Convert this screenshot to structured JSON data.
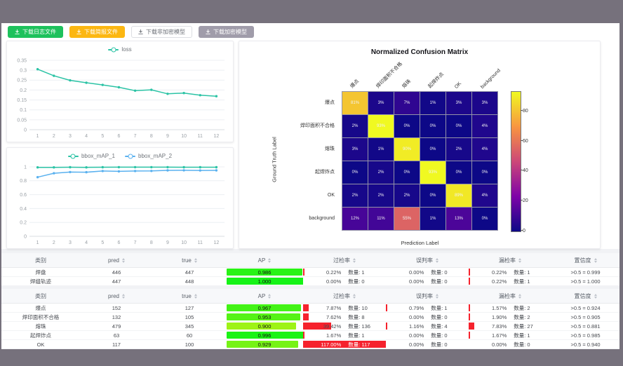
{
  "toolbar": {
    "buttons": [
      {
        "name": "download-log-button",
        "label": "下载日志文件",
        "style": "green",
        "icon": "download-icon"
      },
      {
        "name": "download-report-button",
        "label": "下载简报文件",
        "style": "orange",
        "icon": "download-icon"
      },
      {
        "name": "download-unencrypted-model-button",
        "label": "下载非加密模型",
        "style": "white",
        "icon": "download-icon"
      },
      {
        "name": "download-encrypted-model-button",
        "label": "下载加密模型",
        "style": "gray",
        "icon": "download-icon"
      }
    ]
  },
  "chart_data": [
    {
      "type": "line",
      "title": "loss",
      "x": [
        1,
        2,
        3,
        4,
        5,
        6,
        7,
        8,
        9,
        10,
        11,
        12
      ],
      "series": [
        {
          "name": "loss",
          "color": "#2bc3a5",
          "values": [
            0.305,
            0.272,
            0.249,
            0.237,
            0.226,
            0.214,
            0.197,
            0.201,
            0.181,
            0.185,
            0.174,
            0.169
          ]
        }
      ],
      "ylim": [
        0,
        0.35
      ],
      "yticks": [
        0,
        0.05,
        0.1,
        0.15,
        0.2,
        0.25,
        0.3,
        0.35
      ],
      "legend_position": "top",
      "grid": true
    },
    {
      "type": "line",
      "title": "bbox_mAP",
      "x": [
        1,
        2,
        3,
        4,
        5,
        6,
        7,
        8,
        9,
        10,
        11,
        12
      ],
      "series": [
        {
          "name": "bbox_mAP_1",
          "color": "#2bc3a5",
          "values": [
            0.993,
            0.993,
            0.995,
            0.993,
            0.995,
            0.996,
            0.996,
            0.996,
            0.996,
            0.995,
            0.995,
            0.995
          ]
        },
        {
          "name": "bbox_mAP_2",
          "color": "#5ab1ef",
          "values": [
            0.852,
            0.908,
            0.925,
            0.923,
            0.94,
            0.935,
            0.94,
            0.941,
            0.95,
            0.951,
            0.948,
            0.95
          ]
        }
      ],
      "ylim": [
        0,
        1
      ],
      "yticks": [
        0,
        0.2,
        0.4,
        0.6,
        0.8,
        1
      ],
      "legend_position": "top",
      "grid": true
    },
    {
      "type": "heatmap",
      "title": "Normalized Confusion Matrix",
      "xlabel": "Prediction Label",
      "ylabel": "Ground Truth Label",
      "labels": [
        "爆点",
        "焊印面积不合格",
        "熔珠",
        "起焊炸点",
        "OK",
        "background"
      ],
      "matrix": [
        [
          81,
          3,
          7,
          1,
          3,
          3
        ],
        [
          2,
          93,
          0,
          0,
          0,
          4
        ],
        [
          3,
          1,
          90,
          0,
          2,
          4
        ],
        [
          0,
          2,
          0,
          93,
          0,
          0
        ],
        [
          2,
          2,
          2,
          0,
          89,
          4
        ],
        [
          12,
          11,
          55,
          1,
          13,
          0
        ]
      ],
      "unit": "%",
      "vmax": 93,
      "colormap": "plasma",
      "colorbar_ticks": [
        0,
        20,
        40,
        60,
        80
      ],
      "legend_position": "right-colorbar"
    }
  ],
  "tables": [
    {
      "headers": [
        {
          "label": "类别",
          "sortable": false
        },
        {
          "label": "pred",
          "sortable": true
        },
        {
          "label": "true",
          "sortable": true
        },
        {
          "label": "AP",
          "sortable": true
        },
        {
          "label": "过检率",
          "sortable": true
        },
        {
          "label": "误判率",
          "sortable": true
        },
        {
          "label": "漏检率",
          "sortable": true
        },
        {
          "label": "置信度",
          "sortable": true
        }
      ],
      "rows": [
        {
          "category": "焊盘",
          "pred": "446",
          "true": "447",
          "ap": "0.986",
          "over_rate": "0.22%",
          "over_pct": 0.22,
          "over_count": "数量: 1",
          "mis_rate": "0.00%",
          "mis_pct": 0,
          "mis_count": "数量: 0",
          "miss_rate": "0.22%",
          "miss_pct": 0.22,
          "miss_count": "数量: 1",
          "confidence": ">0.5 = 0.999"
        },
        {
          "category": "焊缝轨迹",
          "pred": "447",
          "true": "448",
          "ap": "1.000",
          "over_rate": "0.00%",
          "over_pct": 0,
          "over_count": "数量: 0",
          "mis_rate": "0.00%",
          "mis_pct": 0,
          "mis_count": "数量: 0",
          "miss_rate": "0.22%",
          "miss_pct": 0.22,
          "miss_count": "数量: 1",
          "confidence": ">0.5 = 1.000"
        }
      ]
    },
    {
      "headers": [
        {
          "label": "类别",
          "sortable": false
        },
        {
          "label": "pred",
          "sortable": true
        },
        {
          "label": "true",
          "sortable": true
        },
        {
          "label": "AP",
          "sortable": true
        },
        {
          "label": "过检率",
          "sortable": true
        },
        {
          "label": "误判率",
          "sortable": true
        },
        {
          "label": "漏检率",
          "sortable": true
        },
        {
          "label": "置信度",
          "sortable": true
        }
      ],
      "rows": [
        {
          "category": "爆点",
          "pred": "152",
          "true": "127",
          "ap": "0.967",
          "over_rate": "7.87%",
          "over_pct": 7.87,
          "over_count": "数量: 10",
          "mis_rate": "0.79%",
          "mis_pct": 0.79,
          "mis_count": "数量: 1",
          "miss_rate": "1.57%",
          "miss_pct": 1.57,
          "miss_count": "数量: 2",
          "confidence": ">0.5 = 0.924"
        },
        {
          "category": "焊印面积不合格",
          "pred": "132",
          "true": "105",
          "ap": "0.953",
          "over_rate": "7.62%",
          "over_pct": 7.62,
          "over_count": "数量: 8",
          "mis_rate": "0.00%",
          "mis_pct": 0,
          "mis_count": "数量: 0",
          "miss_rate": "1.90%",
          "miss_pct": 1.9,
          "miss_count": "数量: 2",
          "confidence": ">0.5 = 0.905"
        },
        {
          "category": "熔珠",
          "pred": "479",
          "true": "345",
          "ap": "0.900",
          "over_rate": "39.42%",
          "over_pct": 39.42,
          "over_count": "数量: 136",
          "mis_rate": "1.16%",
          "mis_pct": 1.16,
          "mis_count": "数量: 4",
          "miss_rate": "7.83%",
          "miss_pct": 7.83,
          "miss_count": "数量: 27",
          "confidence": ">0.5 = 0.881"
        },
        {
          "category": "起焊炸点",
          "pred": "63",
          "true": "60",
          "ap": "0.996",
          "over_rate": "1.67%",
          "over_pct": 1.67,
          "over_count": "数量: 1",
          "mis_rate": "0.00%",
          "mis_pct": 0,
          "mis_count": "数量: 0",
          "miss_rate": "1.67%",
          "miss_pct": 1.67,
          "miss_count": "数量: 1",
          "confidence": ">0.5 = 0.985"
        },
        {
          "category": "OK",
          "pred": "117",
          "true": "100",
          "ap": "0.929",
          "over_rate": "117.00%",
          "over_pct": 117,
          "over_count": "数量: 117",
          "mis_rate": "0.00%",
          "mis_pct": 0,
          "mis_count": "数量: 0",
          "miss_rate": "0.00%",
          "miss_pct": 0,
          "miss_count": "数量: 0",
          "confidence": ">0.5 = 0.940"
        }
      ]
    }
  ],
  "colors": {
    "frame": "#76717c",
    "bar_red": "#f5222d",
    "teal_series": "#2bc3a5",
    "blue_series": "#5ab1ef"
  }
}
